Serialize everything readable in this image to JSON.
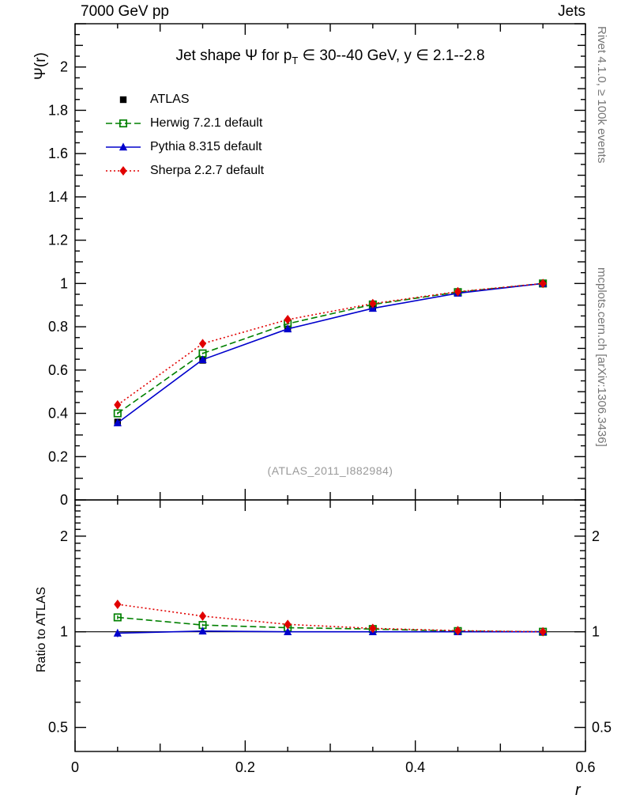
{
  "header": {
    "left": "7000 GeV pp",
    "right": "Jets"
  },
  "right_captions": {
    "top": "Rivet 4.1.0, ≥ 100k events",
    "bottom": "mcplots.cern.ch [arXiv:1306.3436]"
  },
  "watermark": "(ATLAS_2011_I882984)",
  "axis_labels": {
    "main_y": "Ψ(r)",
    "ratio_y": "Ratio to ATLAS",
    "x": "r"
  },
  "title_parts": [
    {
      "text": "Jet shape Ψ for p"
    },
    {
      "text": "T",
      "sub": true
    },
    {
      "text": " ∈ 30--40 GeV, y ∈ 2.1--2.8"
    }
  ],
  "chart_data": [
    {
      "type": "scatter",
      "panel": "main",
      "title": "Jet shape Ψ for p_T ∈ 30--40 GeV, y ∈ 2.1--2.8",
      "xlabel": "r",
      "ylabel": "Ψ(r)",
      "xlim": [
        0,
        0.6
      ],
      "ylim": [
        0,
        2.2
      ],
      "yscale": "linear",
      "grid": false,
      "legend_position": "top-left",
      "xticks": {
        "values": [
          0,
          0.2,
          0.4,
          0.6
        ],
        "labels": [
          "0",
          "0.2",
          "0.4",
          "0.6"
        ]
      },
      "yticks": {
        "values": [
          0,
          0.2,
          0.4,
          0.6,
          0.8,
          1.0,
          1.2,
          1.4,
          1.6,
          1.8,
          2.0
        ],
        "labels": [
          "0",
          "0.2",
          "0.4",
          "0.6",
          "0.8",
          "1",
          "1.2",
          "1.4",
          "1.6",
          "1.8",
          "2"
        ]
      },
      "x": [
        0.05,
        0.15,
        0.25,
        0.35,
        0.45,
        0.55
      ],
      "series": [
        {
          "name": "ATLAS",
          "color": "#000000",
          "marker": "square-filled",
          "line": "none",
          "values": [
            0.36,
            0.645,
            0.79,
            0.885,
            0.955,
            1.0
          ],
          "errors": [
            0.012,
            0.01,
            0.008,
            0.006,
            0.004,
            0.003
          ]
        },
        {
          "name": "Herwig 7.2.1 default",
          "color": "#008000",
          "marker": "square-open",
          "line": "dashed",
          "values": [
            0.4,
            0.677,
            0.814,
            0.903,
            0.96,
            1.0
          ],
          "errors": [
            0.005,
            0.004,
            0.004,
            0.003,
            0.003,
            0.002
          ]
        },
        {
          "name": "Pythia 8.315 default",
          "color": "#0000cc",
          "marker": "triangle-filled",
          "line": "solid",
          "values": [
            0.356,
            0.648,
            0.79,
            0.885,
            0.955,
            1.0
          ],
          "errors": [
            0.005,
            0.004,
            0.004,
            0.003,
            0.003,
            0.002
          ]
        },
        {
          "name": "Sherpa 2.2.7 default",
          "color": "#e10000",
          "marker": "diamond-filled",
          "line": "dotted",
          "values": [
            0.439,
            0.722,
            0.833,
            0.907,
            0.962,
            1.0
          ],
          "errors": [
            0.006,
            0.005,
            0.004,
            0.003,
            0.003,
            0.002
          ]
        }
      ]
    },
    {
      "type": "scatter",
      "panel": "ratio",
      "title": "Ratio to ATLAS",
      "xlabel": "r",
      "ylabel": "Ratio to ATLAS",
      "xlim": [
        0,
        0.6
      ],
      "ylim": [
        0.42,
        2.6
      ],
      "yscale": "log",
      "grid": false,
      "ref_line": 1,
      "right_labels": true,
      "xticks": {
        "values": [
          0,
          0.2,
          0.4,
          0.6
        ],
        "labels": [
          "0",
          "0.2",
          "0.4",
          "0.6"
        ]
      },
      "yticks": {
        "values": [
          0.5,
          1,
          2
        ],
        "labels": [
          "0.5",
          "1",
          "2"
        ]
      },
      "x": [
        0.05,
        0.15,
        0.25,
        0.35,
        0.45,
        0.55
      ],
      "series": [
        {
          "name": "Herwig 7.2.1 default",
          "color": "#008000",
          "marker": "square-open",
          "line": "dashed",
          "values": [
            1.11,
            1.05,
            1.03,
            1.02,
            1.005,
            1.0
          ],
          "errors": [
            0.015,
            0.009,
            0.007,
            0.005,
            0.004,
            0.003
          ]
        },
        {
          "name": "Pythia 8.315 default",
          "color": "#0000cc",
          "marker": "triangle-filled",
          "line": "solid",
          "values": [
            0.99,
            1.005,
            1.0,
            1.0,
            1.0,
            1.0
          ],
          "errors": [
            0.028,
            0.012,
            0.008,
            0.006,
            0.004,
            0.003
          ]
        },
        {
          "name": "Sherpa 2.2.7 default",
          "color": "#e10000",
          "marker": "diamond-filled",
          "line": "dotted",
          "values": [
            1.22,
            1.12,
            1.055,
            1.025,
            1.008,
            1.0
          ],
          "errors": [
            0.02,
            0.012,
            0.008,
            0.006,
            0.004,
            0.003
          ]
        }
      ]
    }
  ]
}
